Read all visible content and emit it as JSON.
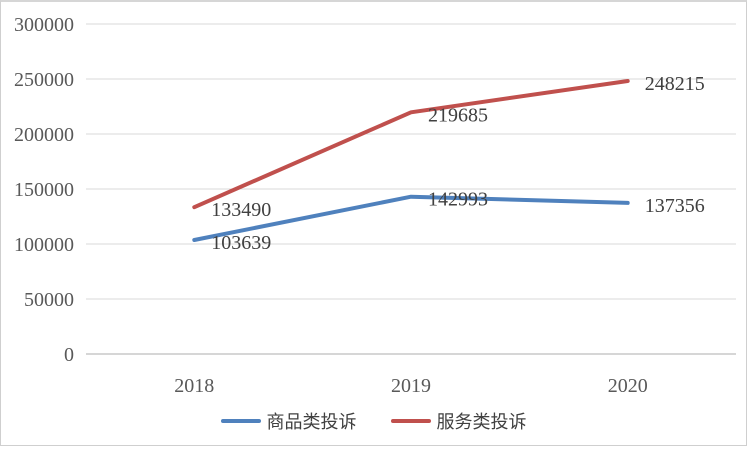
{
  "chart_data": {
    "type": "line",
    "title": "",
    "xlabel": "",
    "ylabel": "",
    "categories": [
      "2018",
      "2019",
      "2020"
    ],
    "series": [
      {
        "name": "商品类投诉",
        "color": "#4F81BD",
        "values": [
          103639,
          142993,
          137356
        ]
      },
      {
        "name": "服务类投诉",
        "color": "#C0504D",
        "values": [
          133490,
          219685,
          248215
        ]
      }
    ],
    "ylim": [
      0,
      300000
    ],
    "ytick_step": 50000,
    "grid": true,
    "legend_position": "bottom",
    "data_labels": true
  },
  "y_axis": {
    "ticks": [
      "300000",
      "250000",
      "200000",
      "150000",
      "100000",
      "50000",
      "0"
    ]
  },
  "x_axis": {
    "ticks": [
      "2018",
      "2019",
      "2020"
    ]
  },
  "colors": {
    "gridline": "#d9d9d9",
    "axis_text": "#595959",
    "data_label_text": "#404040",
    "frame_border": "#cfcfcf"
  }
}
